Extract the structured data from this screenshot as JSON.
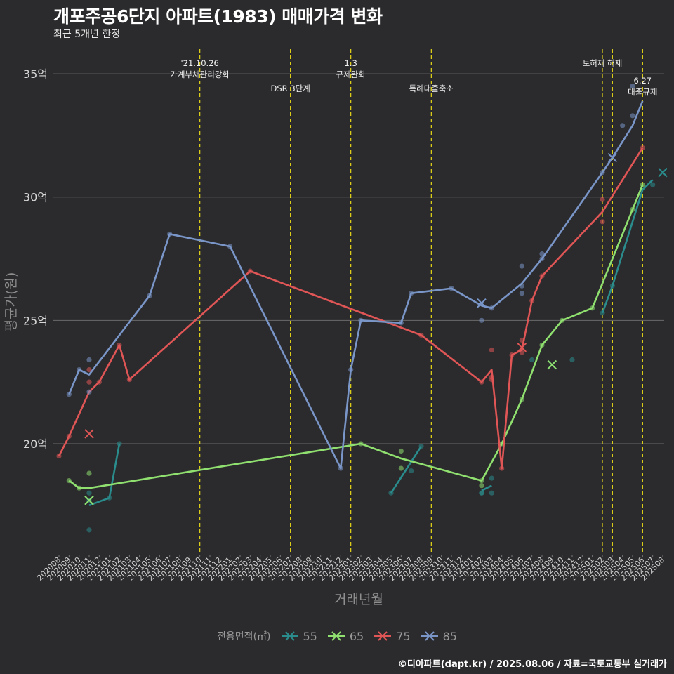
{
  "title": "개포주공6단지 아파트(1983) 매매가격 변화",
  "subtitle": "최근 5개년 한정",
  "caption": "©디아파트(dapt.kr) / 2025.08.06 / 자료=국토교통부 실거래가",
  "chart_data": {
    "type": "line",
    "title": "개포주공6단지 아파트(1983) 매매가격 변화",
    "xlabel": "거래년월",
    "ylabel": "평균가(원)",
    "legend_title": "전용면적(㎡)",
    "legend_position": "bottom",
    "ylim": [
      15.5,
      36
    ],
    "yticks": [
      {
        "value": 20,
        "label": "20억"
      },
      {
        "value": 25,
        "label": "25억"
      },
      {
        "value": 30,
        "label": "30억"
      },
      {
        "value": 35,
        "label": "35억"
      }
    ],
    "x_categories": [
      "202008",
      "202009",
      "202010",
      "202011",
      "202012",
      "202101",
      "202102",
      "202103",
      "202104",
      "202105",
      "202106",
      "202107",
      "202108",
      "202109",
      "202110",
      "202111",
      "202112",
      "202201",
      "202202",
      "202203",
      "202204",
      "202205",
      "202206",
      "202207",
      "202208",
      "202209",
      "202210",
      "202211",
      "202212",
      "202301",
      "202302",
      "202303",
      "202304",
      "202305",
      "202306",
      "202307",
      "202308",
      "202309",
      "202310",
      "202311",
      "202312",
      "202401",
      "202402",
      "202403",
      "202404",
      "202405",
      "202406",
      "202407",
      "202408",
      "202409",
      "202410",
      "202411",
      "202412",
      "202501",
      "202502",
      "202503",
      "202504",
      "202505",
      "202506",
      "202507",
      "202508"
    ],
    "events": [
      {
        "label": "'21.10.26\n가계부채관리강화",
        "x": "202110",
        "row": 1
      },
      {
        "label": "DSR 3단계",
        "x": "202207",
        "row": 2
      },
      {
        "label": "1.3\n규제완화",
        "x": "202301",
        "row": 1
      },
      {
        "label": "특례대출축소",
        "x": "202309",
        "row": 2
      },
      {
        "label": "토허제 해제",
        "x": "202502",
        "row": 1
      },
      {
        "label": "6.27\n대출규제",
        "x": "202506",
        "row": 3
      },
      {
        "label": "",
        "x": "202503",
        "row": 0
      }
    ],
    "series": [
      {
        "name": "55",
        "color": "#2a8c8c",
        "line": [
          [
            3,
            17.5
          ],
          [
            5,
            17.8
          ],
          [
            6,
            20.0
          ]
        ],
        "line_segments": [
          [
            [
              33,
              18.0
            ],
            [
              36,
              19.9
            ]
          ],
          [
            [
              42,
              18.1
            ],
            [
              43,
              18.3
            ]
          ],
          [
            [
              54,
              25.3
            ],
            [
              55,
              26.4
            ],
            [
              58,
              30.3
            ],
            [
              59,
              30.7
            ]
          ]
        ],
        "points": [
          [
            3,
            18.0
          ],
          [
            3,
            17.7
          ],
          [
            3,
            16.5
          ],
          [
            5,
            17.8
          ],
          [
            6,
            20.0
          ],
          [
            33,
            18.0
          ],
          [
            35,
            18.9
          ],
          [
            36,
            19.9
          ],
          [
            42,
            18.0
          ],
          [
            42,
            18.0
          ],
          [
            43,
            18.6
          ],
          [
            43,
            18.0
          ],
          [
            47,
            23.4
          ],
          [
            51,
            23.4
          ],
          [
            54,
            25.3
          ],
          [
            55,
            26.4
          ],
          [
            59,
            30.5
          ]
        ],
        "crosses": [
          [
            3,
            17.7
          ],
          [
            49,
            23.2
          ],
          [
            60,
            31.0
          ]
        ]
      },
      {
        "name": "65",
        "color": "#90e070",
        "line": [
          [
            1,
            18.5
          ],
          [
            2,
            18.2
          ],
          [
            3,
            18.2
          ],
          [
            30,
            20.0
          ],
          [
            34,
            19.4
          ],
          [
            42,
            18.5
          ],
          [
            44,
            20.0
          ],
          [
            46,
            21.8
          ],
          [
            48,
            24.0
          ],
          [
            50,
            25.0
          ],
          [
            53,
            25.5
          ],
          [
            57,
            29.5
          ],
          [
            58,
            30.5
          ]
        ],
        "points": [
          [
            1,
            18.5
          ],
          [
            2,
            18.2
          ],
          [
            3,
            18.8
          ],
          [
            30,
            20.0
          ],
          [
            34,
            19.7
          ],
          [
            34,
            19.0
          ],
          [
            42,
            18.5
          ],
          [
            42,
            18.3
          ],
          [
            44,
            20.0
          ],
          [
            46,
            21.8
          ],
          [
            48,
            24.0
          ],
          [
            50,
            25.0
          ],
          [
            53,
            25.5
          ],
          [
            57,
            29.5
          ],
          [
            58,
            30.5
          ]
        ],
        "crosses": [
          [
            3,
            17.7
          ],
          [
            49,
            23.2
          ]
        ]
      },
      {
        "name": "75",
        "color": "#e05555",
        "line": [
          [
            0,
            19.5
          ],
          [
            1,
            20.3
          ],
          [
            3,
            22.1
          ],
          [
            4,
            22.5
          ],
          [
            6,
            24.0
          ],
          [
            7,
            22.6
          ],
          [
            19,
            27.0
          ],
          [
            36,
            24.4
          ],
          [
            42,
            22.5
          ],
          [
            43,
            23.0
          ],
          [
            44,
            19.0
          ],
          [
            45,
            23.6
          ],
          [
            46,
            23.8
          ],
          [
            47,
            25.8
          ],
          [
            48,
            26.8
          ],
          [
            54,
            29.4
          ],
          [
            58,
            32.0
          ]
        ],
        "points": [
          [
            0,
            19.5
          ],
          [
            1,
            20.3
          ],
          [
            3,
            23.0
          ],
          [
            3,
            22.5
          ],
          [
            4,
            22.5
          ],
          [
            6,
            24.0
          ],
          [
            7,
            22.6
          ],
          [
            19,
            27.0
          ],
          [
            36,
            24.4
          ],
          [
            42,
            22.5
          ],
          [
            43,
            23.8
          ],
          [
            43,
            22.7
          ],
          [
            43,
            22.6
          ],
          [
            44,
            19.0
          ],
          [
            45,
            23.6
          ],
          [
            46,
            24.2
          ],
          [
            46,
            23.7
          ],
          [
            47,
            25.8
          ],
          [
            48,
            26.8
          ],
          [
            54,
            29.9
          ],
          [
            54,
            29.0
          ],
          [
            58,
            32.0
          ]
        ],
        "crosses": [
          [
            3,
            20.4
          ],
          [
            46,
            23.9
          ]
        ]
      },
      {
        "name": "85",
        "color": "#7a96c8",
        "line": [
          [
            1,
            22.0
          ],
          [
            2,
            23.0
          ],
          [
            3,
            22.8
          ],
          [
            9,
            26.0
          ],
          [
            11,
            28.5
          ],
          [
            17,
            28.0
          ],
          [
            28,
            19.0
          ],
          [
            29,
            23.0
          ],
          [
            30,
            25.0
          ],
          [
            34,
            24.9
          ],
          [
            35,
            26.1
          ],
          [
            39,
            26.3
          ],
          [
            42,
            25.6
          ],
          [
            43,
            25.5
          ],
          [
            46,
            26.5
          ],
          [
            48,
            27.5
          ],
          [
            54,
            31.0
          ],
          [
            55,
            31.6
          ],
          [
            57,
            32.9
          ],
          [
            58,
            33.9
          ]
        ],
        "points": [
          [
            1,
            22.0
          ],
          [
            2,
            23.0
          ],
          [
            3,
            23.4
          ],
          [
            3,
            22.1
          ],
          [
            9,
            26.0
          ],
          [
            11,
            28.5
          ],
          [
            17,
            28.0
          ],
          [
            28,
            19.0
          ],
          [
            29,
            23.0
          ],
          [
            30,
            25.0
          ],
          [
            34,
            24.9
          ],
          [
            35,
            26.1
          ],
          [
            39,
            26.3
          ],
          [
            42,
            25.0
          ],
          [
            43,
            25.5
          ],
          [
            46,
            27.2
          ],
          [
            46,
            26.4
          ],
          [
            46,
            26.1
          ],
          [
            48,
            27.7
          ],
          [
            48,
            27.5
          ],
          [
            54,
            31.0
          ],
          [
            56,
            32.9
          ],
          [
            57,
            34.5
          ],
          [
            57,
            33.3
          ]
        ],
        "crosses": [
          [
            42,
            25.7
          ],
          [
            55,
            31.6
          ]
        ]
      }
    ]
  }
}
